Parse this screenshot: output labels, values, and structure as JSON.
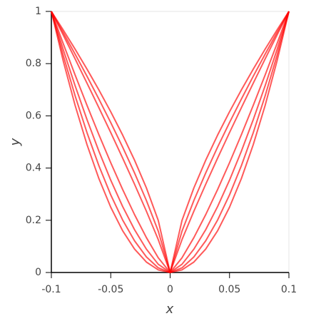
{
  "chart_data": {
    "type": "line",
    "x_label": "x",
    "y_label": "y",
    "x": [
      -0.1,
      -0.09,
      -0.08,
      -0.07,
      -0.06,
      -0.05,
      -0.04,
      -0.03,
      -0.02,
      -0.01,
      0,
      0.01,
      0.02,
      0.03,
      0.04,
      0.05,
      0.06,
      0.07,
      0.08,
      0.09,
      0.1
    ],
    "series": [
      {
        "color": "#ff0000",
        "values": [
          1,
          0.9289,
          0.8554,
          0.7791,
          0.6994,
          0.6156,
          0.5266,
          0.4305,
          0.3241,
          0.1995,
          0,
          0.1995,
          0.3241,
          0.4305,
          0.5266,
          0.6156,
          0.6994,
          0.7791,
          0.8554,
          0.9289,
          1
        ]
      },
      {
        "color": "#ff0000",
        "values": [
          1,
          0.9192,
          0.8365,
          0.7518,
          0.6645,
          0.5743,
          0.4805,
          0.3817,
          0.276,
          0.1585,
          0,
          0.1585,
          0.276,
          0.3817,
          0.4805,
          0.5743,
          0.6645,
          0.7518,
          0.8365,
          0.9192,
          1
        ]
      },
      {
        "color": "#ff0000",
        "values": [
          1,
          0.9095,
          0.8181,
          0.7254,
          0.6314,
          0.5359,
          0.4384,
          0.3384,
          0.2349,
          0.1259,
          0,
          0.1259,
          0.2349,
          0.3384,
          0.4384,
          0.5359,
          0.6314,
          0.7254,
          0.8181,
          0.9095,
          1
        ]
      },
      {
        "color": "#ff0000",
        "values": [
          1,
          0.8765,
          0.7566,
          0.6403,
          0.5281,
          0.4204,
          0.3181,
          0.222,
          0.1337,
          0.0562,
          0,
          0.0562,
          0.1337,
          0.222,
          0.3181,
          0.4204,
          0.5281,
          0.6403,
          0.7566,
          0.8765,
          1
        ]
      },
      {
        "color": "#ff0000",
        "values": [
          1,
          0.8538,
          0.7155,
          0.5857,
          0.4648,
          0.3536,
          0.253,
          0.1643,
          0.0894,
          0.0316,
          0,
          0.0316,
          0.0894,
          0.1643,
          0.253,
          0.3536,
          0.4648,
          0.5857,
          0.7155,
          0.8538,
          1
        ]
      },
      {
        "color": "#ff0000",
        "values": [
          1,
          0.8315,
          0.6768,
          0.5357,
          0.4091,
          0.2973,
          0.2012,
          0.1216,
          0.0598,
          0.0178,
          0,
          0.0178,
          0.0598,
          0.1216,
          0.2012,
          0.2973,
          0.4091,
          0.5357,
          0.6768,
          0.8315,
          1
        ]
      },
      {
        "color": "#ff0000",
        "values": [
          1,
          0.81,
          0.64,
          0.49,
          0.36,
          0.25,
          0.16,
          0.09,
          0.04,
          0.01,
          0,
          0.01,
          0.04,
          0.09,
          0.16,
          0.25,
          0.36,
          0.49,
          0.64,
          0.81,
          1
        ]
      }
    ],
    "xlim": [
      -0.1,
      0.1
    ],
    "ylim": [
      0,
      1
    ],
    "xticks": [
      -0.1,
      -0.05,
      0,
      0.05,
      0.1
    ],
    "yticks": [
      0,
      0.2,
      0.4,
      0.6,
      0.8,
      1
    ]
  }
}
